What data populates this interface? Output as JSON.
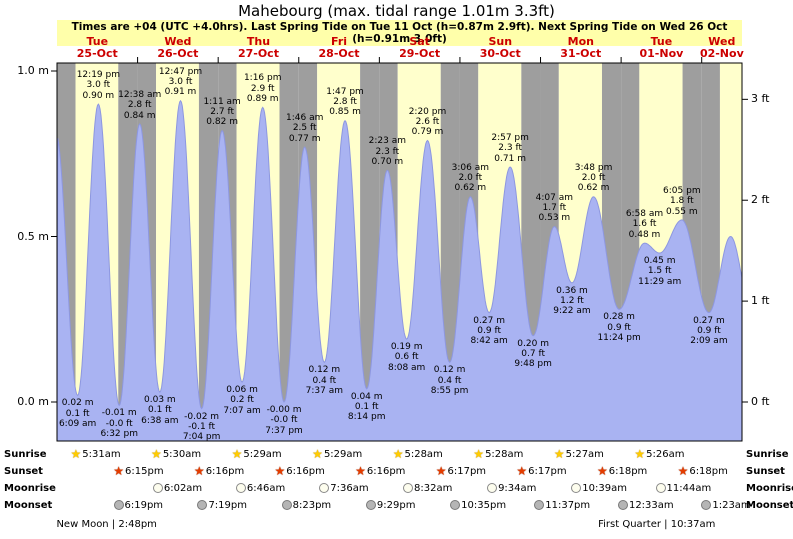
{
  "title": "Mahebourg (max. tidal range 1.01m 3.3ft)",
  "subtitle": "Times are +04 (UTC +4.0hrs). Last Spring Tide on Tue 11 Oct (h=0.87m 2.9ft). Next Spring Tide on Wed 26 Oct (h=0.91m 3.0ft)",
  "colors": {
    "day_band": "#ffffcc",
    "night_band": "#9e9e9e",
    "tide_fill": "#a9b3f2",
    "tide_stroke": "#8d97e0",
    "day_label": "#cc0000",
    "subtitle_bg": "#ffffaa",
    "sunrise_star": "#ffcc00",
    "sunset_star": "#e43c00"
  },
  "chart_data": {
    "type": "area",
    "title": "Mahebourg (max. tidal range 1.01m 3.3ft)",
    "x_span_days": 8.5,
    "ylim": [
      -0.115,
      1.025
    ],
    "grid": false,
    "days": [
      {
        "dow": "Tue",
        "date": "25-Oct"
      },
      {
        "dow": "Wed",
        "date": "26-Oct"
      },
      {
        "dow": "Thu",
        "date": "27-Oct"
      },
      {
        "dow": "Fri",
        "date": "28-Oct"
      },
      {
        "dow": "Sat",
        "date": "29-Oct"
      },
      {
        "dow": "Sun",
        "date": "30-Oct"
      },
      {
        "dow": "Mon",
        "date": "31-Oct"
      },
      {
        "dow": "Tue",
        "date": "01-Nov"
      },
      {
        "dow": "Wed",
        "date": "02-Nov"
      }
    ],
    "y_axis_left": {
      "unit": "m",
      "ticks": [
        {
          "label": "1.0 m",
          "value": 1.0
        },
        {
          "label": "0.5 m",
          "value": 0.5
        },
        {
          "label": "0.0 m",
          "value": 0.0
        }
      ]
    },
    "y_axis_right": {
      "unit": "ft",
      "ticks": [
        {
          "label": "3 ft",
          "value": 0.9144
        },
        {
          "label": "2 ft",
          "value": 0.6096
        },
        {
          "label": "1 ft",
          "value": 0.3048
        },
        {
          "label": "0 ft",
          "value": 0.0
        }
      ]
    },
    "tide_events": [
      {
        "day": 0,
        "time": "6:09 am",
        "type": "low",
        "m": "0.02",
        "ft": "0.1"
      },
      {
        "day": 0,
        "time": "12:19 pm",
        "type": "high",
        "m": "0.90",
        "ft": "3.0"
      },
      {
        "day": 0,
        "time": "6:32 pm",
        "type": "low",
        "m": "-0.01",
        "ft": "-0.0"
      },
      {
        "day": 1,
        "time": "12:38 am",
        "type": "high",
        "m": "0.84",
        "ft": "2.8"
      },
      {
        "day": 1,
        "time": "6:38 am",
        "type": "low",
        "m": "0.03",
        "ft": "0.1"
      },
      {
        "day": 1,
        "time": "12:47 pm",
        "type": "high",
        "m": "0.91",
        "ft": "3.0"
      },
      {
        "day": 1,
        "time": "7:04 pm",
        "type": "low",
        "m": "-0.02",
        "ft": "-0.1"
      },
      {
        "day": 2,
        "time": "1:11 am",
        "type": "high",
        "m": "0.82",
        "ft": "2.7"
      },
      {
        "day": 2,
        "time": "7:07 am",
        "type": "low",
        "m": "0.06",
        "ft": "0.2"
      },
      {
        "day": 2,
        "time": "1:16 pm",
        "type": "high",
        "m": "0.89",
        "ft": "2.9"
      },
      {
        "day": 2,
        "time": "7:37 pm",
        "type": "low",
        "m": "-0.00",
        "ft": "-0.0"
      },
      {
        "day": 3,
        "time": "1:46 am",
        "type": "high",
        "m": "0.77",
        "ft": "2.5"
      },
      {
        "day": 3,
        "time": "7:37 am",
        "type": "low",
        "m": "0.12",
        "ft": "0.4"
      },
      {
        "day": 3,
        "time": "1:47 pm",
        "type": "high",
        "m": "0.85",
        "ft": "2.8"
      },
      {
        "day": 3,
        "time": "8:14 pm",
        "type": "low",
        "m": "0.04",
        "ft": "0.1"
      },
      {
        "day": 4,
        "time": "2:23 am",
        "type": "high",
        "m": "0.70",
        "ft": "2.3"
      },
      {
        "day": 4,
        "time": "8:08 am",
        "type": "low",
        "m": "0.19",
        "ft": "0.6"
      },
      {
        "day": 4,
        "time": "2:20 pm",
        "type": "high",
        "m": "0.79",
        "ft": "2.6"
      },
      {
        "day": 4,
        "time": "8:55 pm",
        "type": "low",
        "m": "0.12",
        "ft": "0.4"
      },
      {
        "day": 5,
        "time": "3:06 am",
        "type": "high",
        "m": "0.62",
        "ft": "2.0"
      },
      {
        "day": 5,
        "time": "8:42 am",
        "type": "low",
        "m": "0.27",
        "ft": "0.9"
      },
      {
        "day": 5,
        "time": "2:57 pm",
        "type": "high",
        "m": "0.71",
        "ft": "2.3"
      },
      {
        "day": 5,
        "time": "9:48 pm",
        "type": "low",
        "m": "0.20",
        "ft": "0.7"
      },
      {
        "day": 6,
        "time": "4:07 am",
        "type": "high",
        "m": "0.53",
        "ft": "1.7"
      },
      {
        "day": 6,
        "time": "9:22 am",
        "type": "low",
        "m": "0.36",
        "ft": "1.2"
      },
      {
        "day": 6,
        "time": "3:48 pm",
        "type": "high",
        "m": "0.62",
        "ft": "2.0"
      },
      {
        "day": 6,
        "time": "11:24 pm",
        "type": "low",
        "m": "0.28",
        "ft": "0.9"
      },
      {
        "day": 7,
        "time": "6:58 am",
        "type": "high",
        "m": "0.48",
        "ft": "1.6"
      },
      {
        "day": 7,
        "time": "11:29 am",
        "type": "low",
        "m": "0.45",
        "ft": "1.5"
      },
      {
        "day": 7,
        "time": "6:05 pm",
        "type": "high",
        "m": "0.55",
        "ft": "1.8"
      },
      {
        "day": 8,
        "time": "2:09 am",
        "type": "low",
        "m": "0.27",
        "ft": "0.9"
      }
    ],
    "curve_anchors": [
      {
        "day": 0,
        "hour": -0.3,
        "m": 0.81
      },
      {
        "day": 8,
        "hour": 8.6,
        "m": 0.5
      },
      {
        "day": 8,
        "hour": 14.8,
        "m": 0.28
      }
    ]
  },
  "astro": {
    "rows": [
      {
        "label": "Sunrise",
        "icon": "sunrise-star",
        "events": [
          {
            "day": 0,
            "time": "5:31am"
          },
          {
            "day": 1,
            "time": "5:30am"
          },
          {
            "day": 2,
            "time": "5:29am"
          },
          {
            "day": 3,
            "time": "5:29am"
          },
          {
            "day": 4,
            "time": "5:28am"
          },
          {
            "day": 5,
            "time": "5:28am"
          },
          {
            "day": 6,
            "time": "5:27am"
          },
          {
            "day": 7,
            "time": "5:26am"
          }
        ]
      },
      {
        "label": "Sunset",
        "icon": "sunset-star",
        "events": [
          {
            "day": 0,
            "time": "6:15pm"
          },
          {
            "day": 1,
            "time": "6:16pm"
          },
          {
            "day": 2,
            "time": "6:16pm"
          },
          {
            "day": 3,
            "time": "6:16pm"
          },
          {
            "day": 4,
            "time": "6:17pm"
          },
          {
            "day": 5,
            "time": "6:17pm"
          },
          {
            "day": 6,
            "time": "6:18pm"
          },
          {
            "day": 7,
            "time": "6:18pm"
          }
        ]
      },
      {
        "label": "Moonrise",
        "icon": "moonrise-circle",
        "events": [
          {
            "day": 1,
            "time": "6:02am"
          },
          {
            "day": 2,
            "time": "6:46am"
          },
          {
            "day": 3,
            "time": "7:36am"
          },
          {
            "day": 4,
            "time": "8:32am"
          },
          {
            "day": 5,
            "time": "9:34am"
          },
          {
            "day": 6,
            "time": "10:39am"
          },
          {
            "day": 7,
            "time": "11:44am"
          }
        ]
      },
      {
        "label": "Moonset",
        "icon": "moonset-circle",
        "events": [
          {
            "day": 0,
            "time": "6:19pm"
          },
          {
            "day": 1,
            "time": "7:19pm"
          },
          {
            "day": 2,
            "time": "8:23pm"
          },
          {
            "day": 3,
            "time": "9:29pm"
          },
          {
            "day": 4,
            "time": "10:35pm"
          },
          {
            "day": 5,
            "time": "11:37pm"
          },
          {
            "day": 7,
            "time": "12:33am"
          },
          {
            "day": 8,
            "time": "1:23am"
          }
        ]
      }
    ],
    "phases": [
      {
        "label": "New Moon | 2:48pm",
        "day": 0,
        "time": "2:48pm"
      },
      {
        "label": "First Quarter | 10:37am",
        "day": 7,
        "time": "10:37am"
      }
    ]
  }
}
